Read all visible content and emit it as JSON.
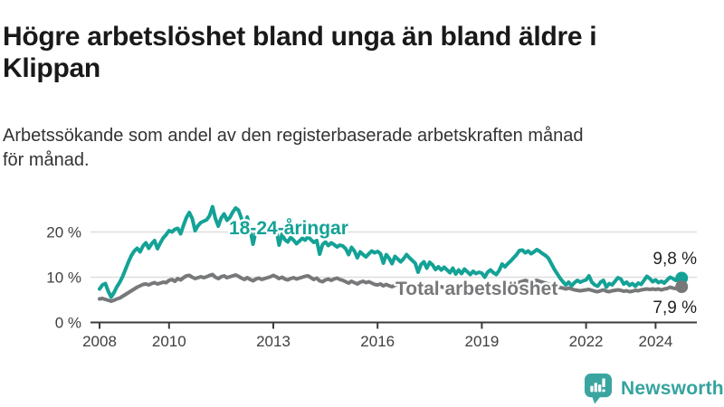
{
  "header": {
    "title_lines": [
      "Högre arbetslöshet bland unga än bland äldre i",
      "Klippan"
    ],
    "subtitle_lines": [
      "Arbetssökande som andel av den registerbaserade arbetskraften månad",
      "för månad."
    ]
  },
  "chart_data": {
    "type": "line",
    "title": "Högre arbetslöshet bland unga än bland äldre i Klippan",
    "subtitle": "Arbetssökande som andel av den registerbaserade arbetskraften månad för månad.",
    "x_unit": "month",
    "start_year": 2008,
    "end_point": "2024-10",
    "xlim": [
      2007.7,
      2025.2
    ],
    "ylim": [
      0,
      27
    ],
    "grid": "horizontal",
    "x_ticks": [
      {
        "year": 2008,
        "label": "2008"
      },
      {
        "year": 2010,
        "label": "2010"
      },
      {
        "year": 2013,
        "label": "2013"
      },
      {
        "year": 2016,
        "label": "2016"
      },
      {
        "year": 2019,
        "label": "2019"
      },
      {
        "year": 2022,
        "label": "2022"
      },
      {
        "year": 2024,
        "label": "2024"
      }
    ],
    "y_ticks": [
      {
        "value": 0,
        "label": "0 %"
      },
      {
        "value": 10,
        "label": "10 %"
      },
      {
        "value": 20,
        "label": "20 %"
      }
    ],
    "colors": {
      "grid": "#dedede",
      "axis": "#3b3b3b",
      "tick_text": "#3f3f3f",
      "annotation_text": "#222222"
    },
    "series": [
      {
        "name": "18-24-åringar",
        "color": "#14a296",
        "end_value": 9.8,
        "end_label": "9,8 %",
        "values": [
          7.4,
          8.3,
          8.6,
          6.9,
          5.6,
          6.6,
          7.9,
          8.9,
          10.2,
          11.8,
          13.4,
          14.8,
          15.8,
          16.4,
          15.6,
          16.9,
          17.6,
          16.4,
          17.4,
          18.1,
          16.3,
          17.6,
          18.7,
          19.4,
          20.3,
          20.0,
          20.6,
          20.8,
          19.6,
          21.5,
          23.2,
          24.3,
          23.0,
          20.3,
          21.4,
          22.1,
          22.4,
          22.7,
          23.6,
          25.6,
          23.0,
          21.3,
          23.1,
          24.0,
          22.6,
          23.2,
          24.4,
          25.3,
          24.8,
          23.0,
          20.3,
          23.3,
          20.6,
          17.3,
          20.2,
          22.3,
          21.5,
          21.9,
          21.3,
          21.6,
          21.3,
          20.5,
          17.1,
          19.5,
          18.3,
          17.8,
          18.8,
          18.2,
          17.4,
          18.0,
          18.6,
          18.2,
          19.0,
          18.3,
          17.7,
          18.1,
          15.1,
          17.2,
          17.8,
          17.0,
          17.6,
          17.2,
          16.7,
          17.1,
          16.9,
          16.3,
          15.0,
          16.6,
          15.8,
          14.3,
          15.6,
          15.0,
          14.5,
          15.2,
          15.8,
          15.4,
          15.7,
          15.2,
          13.1,
          15.0,
          14.2,
          13.0,
          14.6,
          14.0,
          13.4,
          14.1,
          15.0,
          14.3,
          13.7,
          13.1,
          11.1,
          12.8,
          13.4,
          12.0,
          13.3,
          12.7,
          11.7,
          12.3,
          11.6,
          12.2,
          11.6,
          11.0,
          12.0,
          10.7,
          11.6,
          10.8,
          11.8,
          11.2,
          10.6,
          11.3,
          10.8,
          11.1,
          10.9,
          10.0,
          11.1,
          11.6,
          11.0,
          10.6,
          11.5,
          12.9,
          12.3,
          13.0,
          13.6,
          14.3,
          15.0,
          15.9,
          16.0,
          15.4,
          15.8,
          15.2,
          15.6,
          16.1,
          15.7,
          15.2,
          14.8,
          14.2,
          13.0,
          11.8,
          10.8,
          9.8,
          9.0,
          8.3,
          8.9,
          8.1,
          8.8,
          9.3,
          8.9,
          9.2,
          9.4,
          10.3,
          8.9,
          8.3,
          8.0,
          8.9,
          9.3,
          7.8,
          8.6,
          8.3,
          9.1,
          9.9,
          9.6,
          8.5,
          8.9,
          8.2,
          8.6,
          8.0,
          8.7,
          8.4,
          9.3,
          10.2,
          9.7,
          9.0,
          9.4,
          8.8,
          9.1,
          8.7,
          9.4,
          10.0,
          9.7,
          9.3,
          9.5,
          9.8
        ]
      },
      {
        "name": "Total arbetslöshet",
        "color": "#77787a",
        "end_value": 7.9,
        "end_label": "7,9 %",
        "values": [
          5.2,
          5.3,
          5.1,
          4.9,
          4.7,
          4.9,
          5.2,
          5.4,
          5.8,
          6.2,
          6.6,
          7.0,
          7.4,
          7.8,
          8.1,
          8.4,
          8.5,
          8.3,
          8.6,
          8.8,
          8.5,
          8.7,
          8.9,
          8.8,
          9.3,
          9.5,
          9.1,
          9.7,
          9.4,
          9.9,
          10.3,
          10.4,
          10.0,
          9.7,
          9.9,
          10.1,
          9.9,
          10.1,
          10.4,
          10.6,
          10.0,
          9.7,
          10.1,
          10.3,
          9.9,
          10.1,
          10.3,
          10.5,
          10.2,
          9.8,
          9.5,
          9.9,
          9.5,
          9.2,
          9.6,
          9.8,
          9.5,
          9.7,
          9.9,
          10.1,
          10.4,
          10.1,
          9.7,
          10.0,
          9.6,
          9.4,
          9.7,
          9.9,
          9.6,
          9.8,
          10.0,
          10.2,
          10.3,
          9.9,
          9.5,
          9.8,
          9.2,
          9.0,
          9.4,
          9.6,
          9.3,
          9.6,
          9.8,
          9.5,
          9.3,
          9.0,
          8.7,
          9.1,
          8.8,
          8.5,
          8.9,
          9.1,
          8.8,
          9.0,
          8.7,
          8.4,
          8.3,
          8.5,
          8.1,
          8.4,
          8.1,
          7.9,
          8.2,
          8.4,
          8.1,
          8.0,
          8.2,
          8.0,
          7.9,
          8.1,
          7.8,
          8.0,
          7.7,
          7.6,
          7.9,
          8.1,
          7.8,
          7.7,
          7.9,
          7.7,
          7.6,
          7.8,
          7.5,
          7.7,
          7.4,
          7.3,
          7.6,
          7.8,
          7.5,
          7.6,
          7.8,
          7.9,
          7.8,
          7.6,
          7.9,
          8.0,
          7.8,
          7.6,
          7.9,
          8.1,
          7.9,
          8.1,
          8.3,
          8.5,
          8.7,
          8.9,
          9.1,
          9.3,
          9.1,
          8.9,
          9.2,
          9.3,
          9.1,
          8.9,
          8.7,
          8.5,
          8.3,
          8.1,
          7.9,
          7.7,
          7.6,
          7.4,
          7.6,
          7.4,
          7.2,
          7.1,
          7.0,
          7.1,
          7.2,
          7.3,
          7.1,
          6.9,
          6.8,
          7.0,
          7.2,
          6.9,
          6.8,
          7.0,
          7.1,
          7.2,
          7.1,
          6.9,
          7.0,
          6.8,
          6.9,
          7.1,
          7.0,
          7.2,
          7.3,
          7.4,
          7.3,
          7.4,
          7.3,
          7.4,
          7.2,
          7.4,
          7.5,
          7.8,
          7.6,
          7.5,
          7.7,
          7.9
        ]
      }
    ]
  },
  "footer": {
    "brand": "Newsworthy",
    "brand_color": "#35a39e",
    "logo_icon": "bar-chart-speech-bubble"
  }
}
